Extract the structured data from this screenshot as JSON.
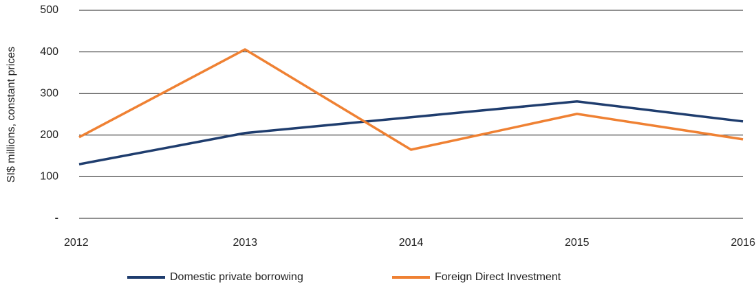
{
  "chart_data": {
    "type": "line",
    "y_label": "SI$ millions, constant prices",
    "categories": [
      "2012",
      "2013",
      "2014",
      "2015",
      "2016"
    ],
    "series": [
      {
        "name": "Domestic private borrowing",
        "color": "#1f3d6e",
        "values": [
          130,
          205,
          243,
          281,
          233
        ]
      },
      {
        "name": "Foreign Direct Investment",
        "color": "#ef8133",
        "values": [
          195,
          406,
          165,
          251,
          190
        ]
      }
    ],
    "ylim": [
      0,
      500
    ],
    "yticks": [
      {
        "value": 0,
        "label": "-"
      },
      100,
      200,
      300,
      400,
      500
    ],
    "grid": true,
    "legend": "bottom"
  }
}
